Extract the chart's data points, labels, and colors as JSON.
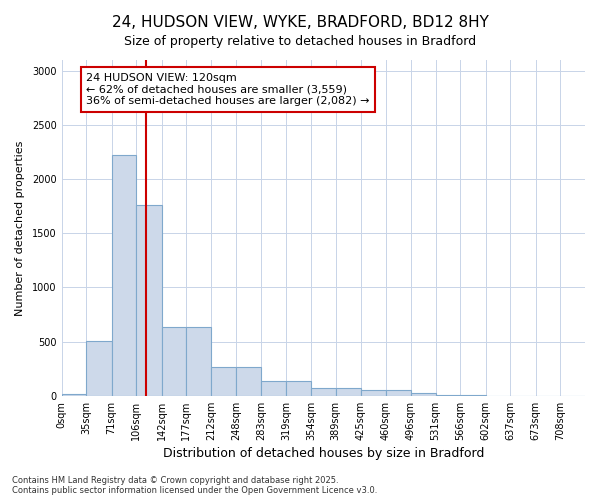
{
  "title_line1": "24, HUDSON VIEW, WYKE, BRADFORD, BD12 8HY",
  "title_line2": "Size of property relative to detached houses in Bradford",
  "xlabel": "Distribution of detached houses by size in Bradford",
  "ylabel": "Number of detached properties",
  "bar_color": "#cdd9ea",
  "bar_edge_color": "#7fa8cc",
  "categories": [
    "0sqm",
    "35sqm",
    "71sqm",
    "106sqm",
    "142sqm",
    "177sqm",
    "212sqm",
    "248sqm",
    "283sqm",
    "319sqm",
    "354sqm",
    "389sqm",
    "425sqm",
    "460sqm",
    "496sqm",
    "531sqm",
    "566sqm",
    "602sqm",
    "637sqm",
    "673sqm",
    "708sqm"
  ],
  "values": [
    20,
    510,
    2220,
    1760,
    635,
    635,
    265,
    265,
    140,
    140,
    75,
    75,
    50,
    50,
    30,
    5,
    5,
    2,
    2,
    0,
    0
  ],
  "bin_edges": [
    0,
    35,
    71,
    106,
    142,
    177,
    212,
    248,
    283,
    319,
    354,
    389,
    425,
    460,
    496,
    531,
    566,
    602,
    637,
    673,
    708,
    743
  ],
  "ylim": [
    0,
    3100
  ],
  "yticks": [
    0,
    500,
    1000,
    1500,
    2000,
    2500,
    3000
  ],
  "vline_x": 120,
  "vline_color": "#cc0000",
  "annotation_text": "24 HUDSON VIEW: 120sqm\n← 62% of detached houses are smaller (3,559)\n36% of semi-detached houses are larger (2,082) →",
  "footer_line1": "Contains HM Land Registry data © Crown copyright and database right 2025.",
  "footer_line2": "Contains public sector information licensed under the Open Government Licence v3.0.",
  "background_color": "#ffffff",
  "grid_color": "#c8d4e8",
  "title_fontsize": 11,
  "subtitle_fontsize": 9,
  "xlabel_fontsize": 9,
  "ylabel_fontsize": 8,
  "tick_fontsize": 7,
  "annotation_fontsize": 8,
  "footer_fontsize": 6
}
